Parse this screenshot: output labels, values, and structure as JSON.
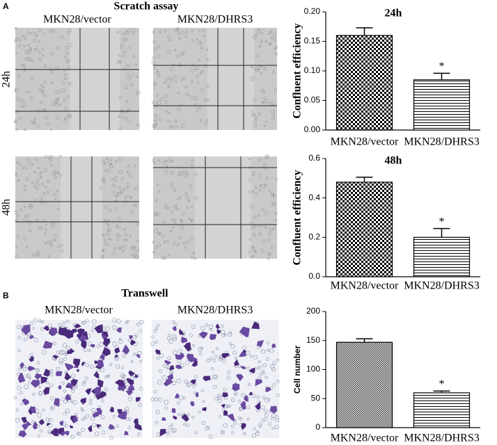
{
  "figure": {
    "panel_a": "A",
    "panel_b": "B",
    "scratch_title": "Scratch assay",
    "transwell_title": "Transwell",
    "scratch_columns": [
      "MKN28/vector",
      "MKN28/DHRS3"
    ],
    "scratch_rows": [
      "24h",
      "48h"
    ],
    "transwell_columns": [
      "MKN28/vector",
      "MKN28/DHRS3"
    ]
  },
  "chart_data": [
    {
      "type": "bar",
      "title": "24h",
      "y_label": "Confluent efficiency",
      "categories": [
        "MKN28/vector",
        "MKN28/DHRS3"
      ],
      "values": [
        0.16,
        0.085
      ],
      "errors": [
        0.013,
        0.011
      ],
      "annotation": "*",
      "ylim": [
        0,
        0.2
      ],
      "yticks": [
        {
          "value": 0,
          "label": "0.00"
        },
        {
          "value": 0.05,
          "label": "0.05"
        },
        {
          "value": 0.1,
          "label": "0.10"
        },
        {
          "value": 0.15,
          "label": "0.15"
        },
        {
          "value": 0.2,
          "label": "0.20"
        }
      ]
    },
    {
      "type": "bar",
      "title": "48h",
      "y_label": "Confluent efficiency",
      "categories": [
        "MKN28/vector",
        "MKN28/DHRS3"
      ],
      "values": [
        0.48,
        0.2
      ],
      "errors": [
        0.025,
        0.045
      ],
      "annotation": "*",
      "ylim": [
        0,
        0.6
      ],
      "yticks": [
        {
          "value": 0,
          "label": "0.0"
        },
        0.2,
        0.4,
        0.6
      ]
    },
    {
      "type": "bar",
      "y_label": "Cell number",
      "categories": [
        "MKN28/vector",
        "MKN28/DHRS3"
      ],
      "values": [
        147,
        60
      ],
      "errors": [
        6,
        3
      ],
      "annotation": "*",
      "ylim": [
        0,
        200
      ],
      "yticks": [
        0,
        50,
        100,
        150,
        200
      ]
    }
  ]
}
